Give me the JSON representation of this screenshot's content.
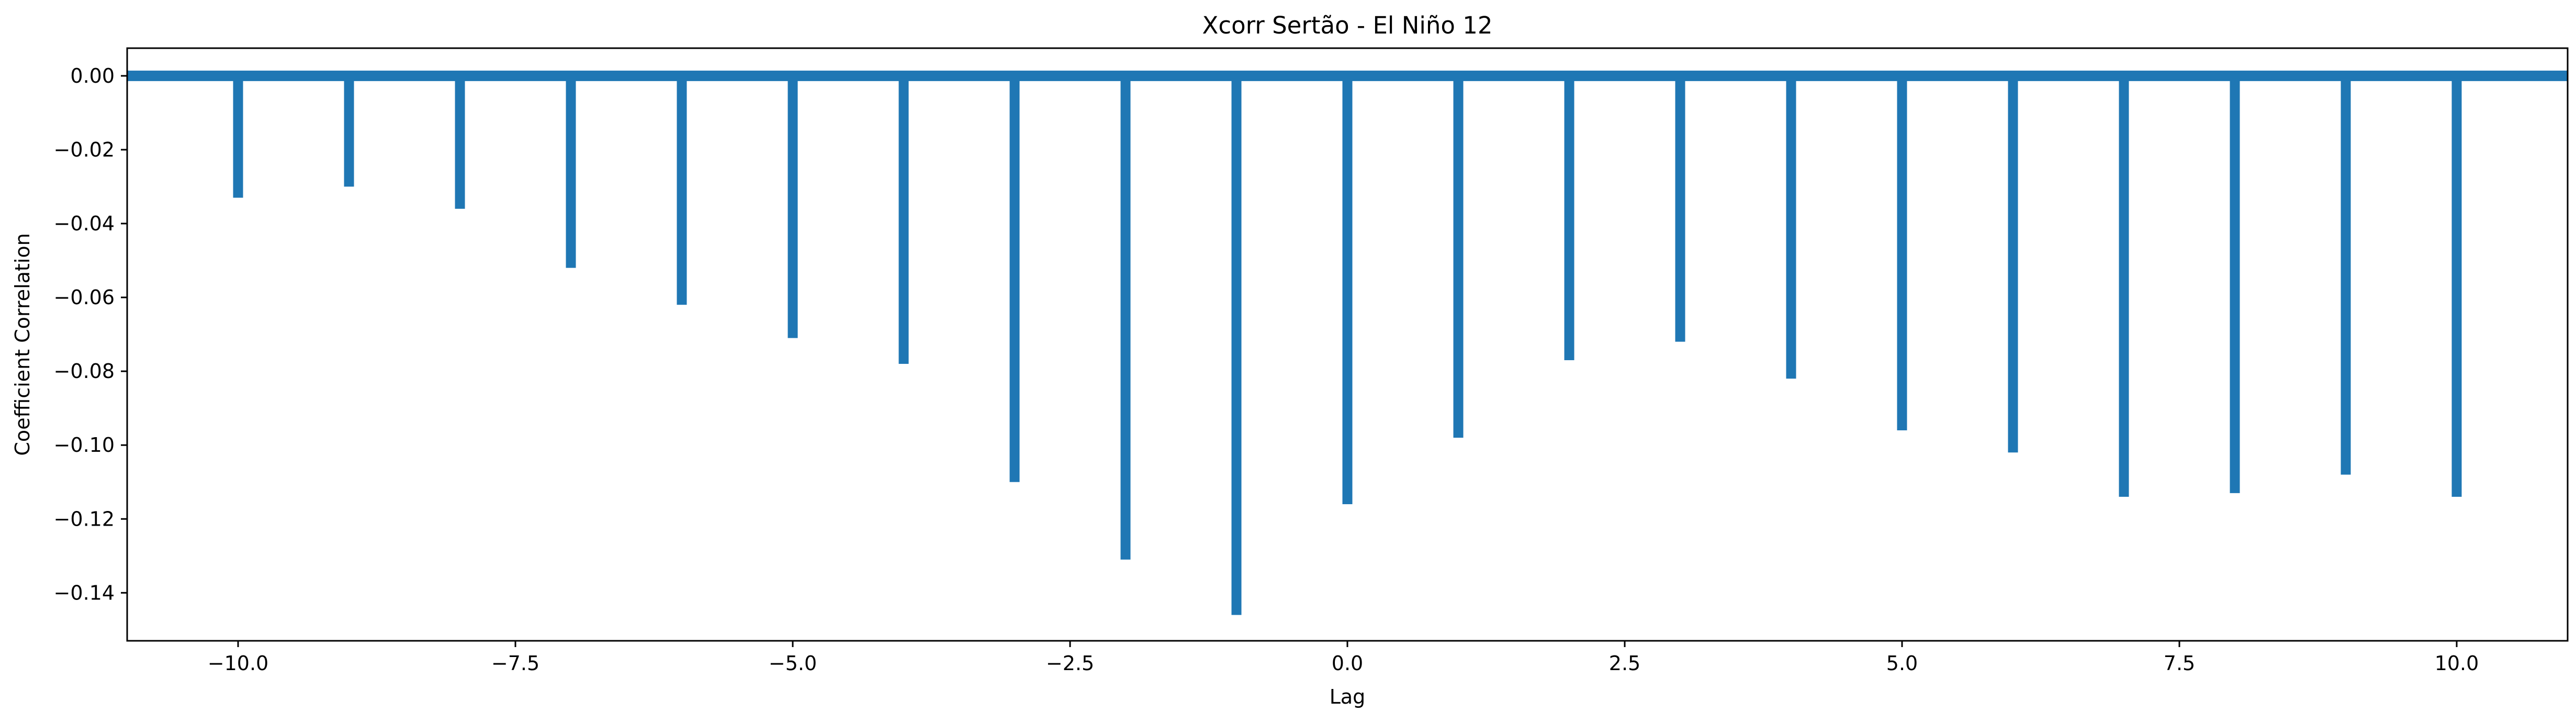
{
  "chart_data": {
    "type": "bar",
    "title": "Xcorr Sertão - El Niño 12",
    "xlabel": "Lag",
    "ylabel": "Coefficient Correlation",
    "xlim": [
      -11,
      11
    ],
    "ylim": [
      -0.153,
      0.0075
    ],
    "grid": false,
    "x": [
      -10,
      -9,
      -8,
      -7,
      -6,
      -5,
      -4,
      -3,
      -2,
      -1,
      0,
      1,
      2,
      3,
      4,
      5,
      6,
      7,
      8,
      9,
      10
    ],
    "values": [
      -0.033,
      -0.03,
      -0.036,
      -0.052,
      -0.062,
      -0.071,
      -0.078,
      -0.11,
      -0.131,
      -0.146,
      -0.116,
      -0.098,
      -0.077,
      -0.072,
      -0.082,
      -0.096,
      -0.102,
      -0.114,
      -0.113,
      -0.108,
      -0.114
    ],
    "baseline": 0.0,
    "xticks": [
      -10.0,
      -7.5,
      -5.0,
      -2.5,
      0.0,
      2.5,
      5.0,
      7.5,
      10.0
    ],
    "xtick_labels": [
      "−10.0",
      "−7.5",
      "−5.0",
      "−2.5",
      "0.0",
      "2.5",
      "5.0",
      "7.5",
      "10.0"
    ],
    "yticks": [
      0.0,
      -0.02,
      -0.04,
      -0.06,
      -0.08,
      -0.1,
      -0.12,
      -0.14
    ],
    "ytick_labels": [
      "0.00",
      "−0.02",
      "−0.04",
      "−0.06",
      "−0.08",
      "−0.10",
      "−0.12",
      "−0.14"
    ],
    "color": "#1f77b4"
  }
}
